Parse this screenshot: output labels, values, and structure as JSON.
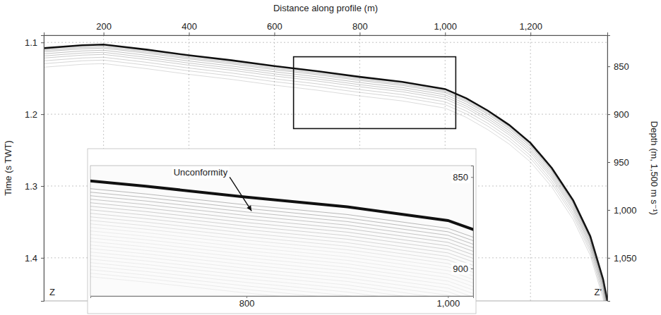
{
  "chart_data": {
    "type": "seismic_profile",
    "x_label": "Distance along profile (m)",
    "y_label": "Time (s TWT)",
    "y2_label": "Depth (m, 1,500 m s⁻¹)",
    "xlim": [
      60,
      1380
    ],
    "xticks": [
      200,
      400,
      600,
      800,
      {
        "value": 1000,
        "label": "1,000"
      },
      {
        "value": 1200,
        "label": "1,200"
      }
    ],
    "ylim": [
      1.09,
      1.46
    ],
    "yticks": [
      1.1,
      1.2,
      1.3,
      1.4
    ],
    "y2lim": [
      817.5,
      1095
    ],
    "y2ticks": [
      850,
      900,
      950,
      {
        "value": 1000,
        "label": "1,000"
      },
      {
        "value": 1050,
        "label": "1,050"
      }
    ],
    "grid": true,
    "series": [
      {
        "color": "#111111",
        "x": [
          60,
          150,
          200,
          300,
          400,
          500,
          600,
          700,
          800,
          900,
          1000,
          1050,
          1100,
          1150,
          1200,
          1250,
          1300,
          1340,
          1370,
          1380
        ],
        "values": [
          1.108,
          1.104,
          1.103,
          1.11,
          1.118,
          1.125,
          1.133,
          1.14,
          1.148,
          1.155,
          1.165,
          1.178,
          1.195,
          1.215,
          1.24,
          1.275,
          1.32,
          1.37,
          1.43,
          1.46
        ]
      }
    ],
    "profile_ends": [
      "Z",
      "Z'"
    ],
    "zoom_box": {
      "xlim": [
        645,
        1025
      ],
      "ylim": [
        1.12,
        1.22
      ]
    },
    "inset": {
      "xlim": [
        645,
        1025
      ],
      "ylim": [
        1.125,
        1.22
      ],
      "xticks": [
        800,
        {
          "value": 1000,
          "label": "1,000"
        }
      ],
      "y2lim": [
        843.75,
        915
      ],
      "y2ticks": [
        850,
        900
      ]
    },
    "annotations": [
      {
        "text": "Unconformity",
        "x": 805,
        "y": 1.158
      }
    ]
  }
}
